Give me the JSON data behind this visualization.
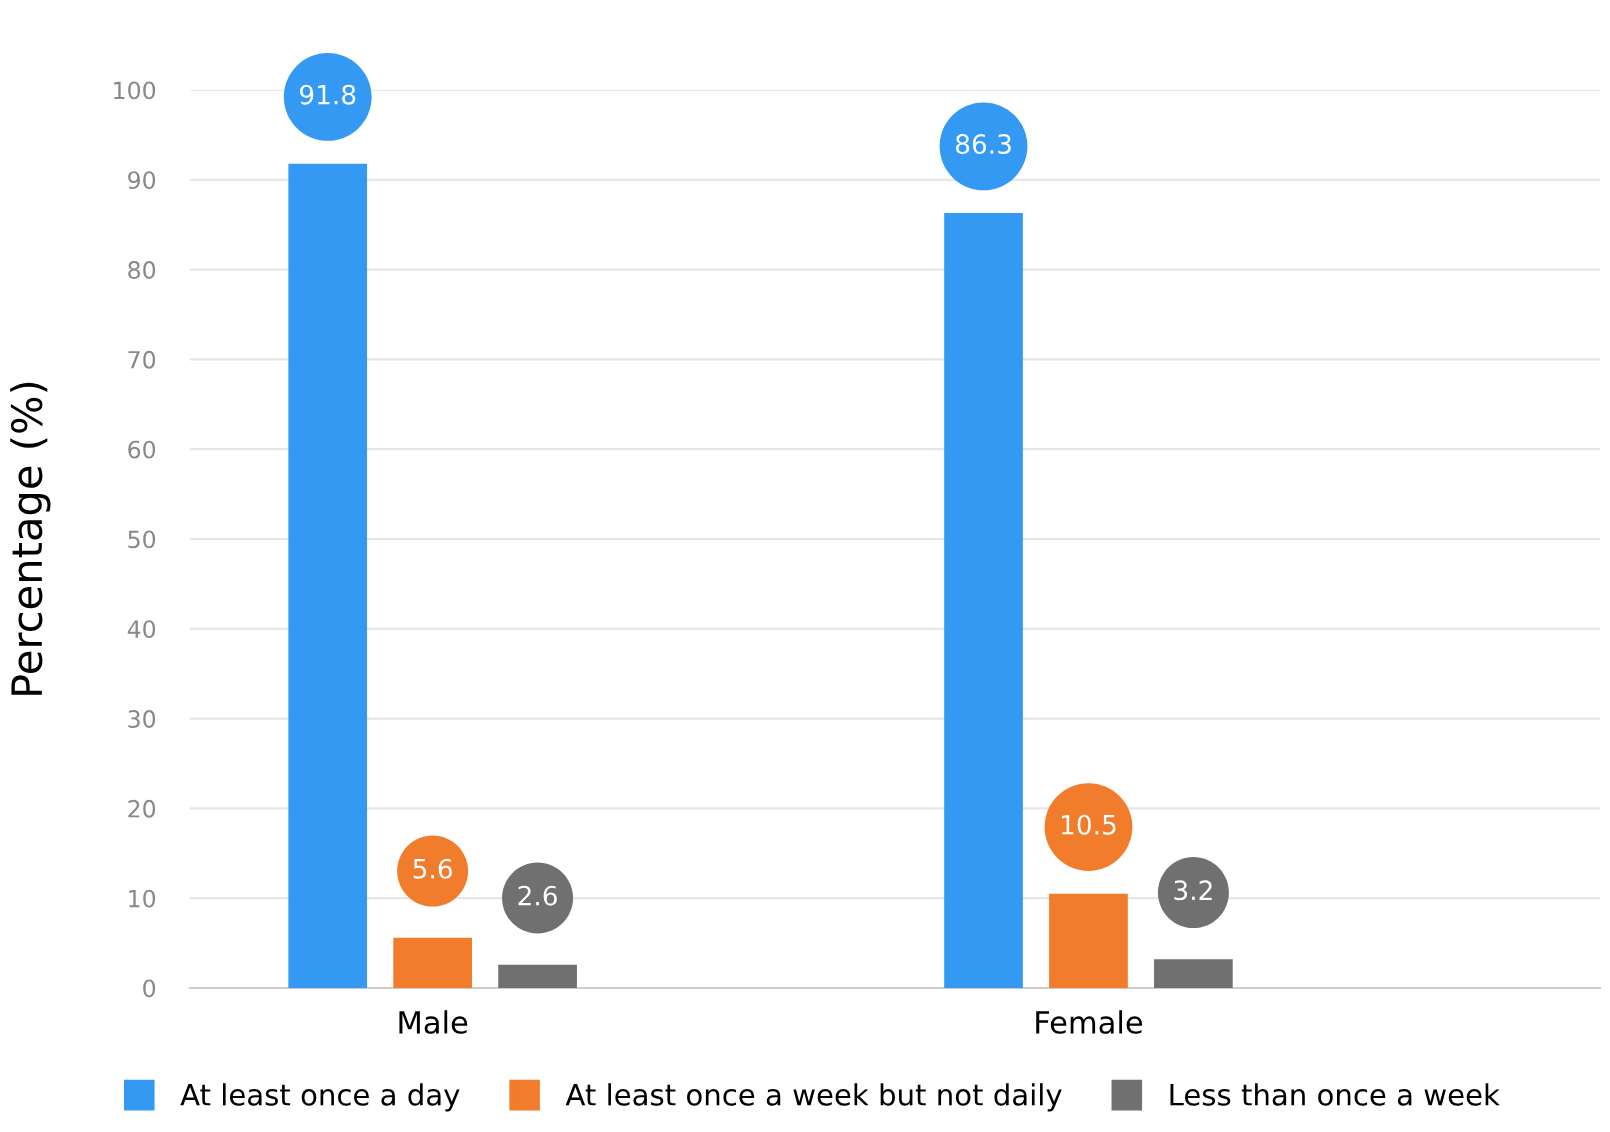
{
  "chart_data": {
    "type": "bar",
    "ylabel": "Percentage (%)",
    "categories": [
      "Male",
      "Female"
    ],
    "series": [
      {
        "name": "At least once a day",
        "color": "#3399f3",
        "values": [
          91.8,
          86.3
        ]
      },
      {
        "name": "At least once a week but not daily",
        "color": "#f07c2c",
        "values": [
          5.6,
          10.5
        ]
      },
      {
        "name": "Less than once a week",
        "color": "#707070",
        "values": [
          2.6,
          3.2
        ]
      }
    ],
    "ylim": [
      0,
      100
    ],
    "yticks": [
      0,
      10,
      20,
      30,
      40,
      50,
      60,
      70,
      80,
      90,
      100
    ],
    "grid": "y",
    "legend": "bottom",
    "data_labels": true
  }
}
